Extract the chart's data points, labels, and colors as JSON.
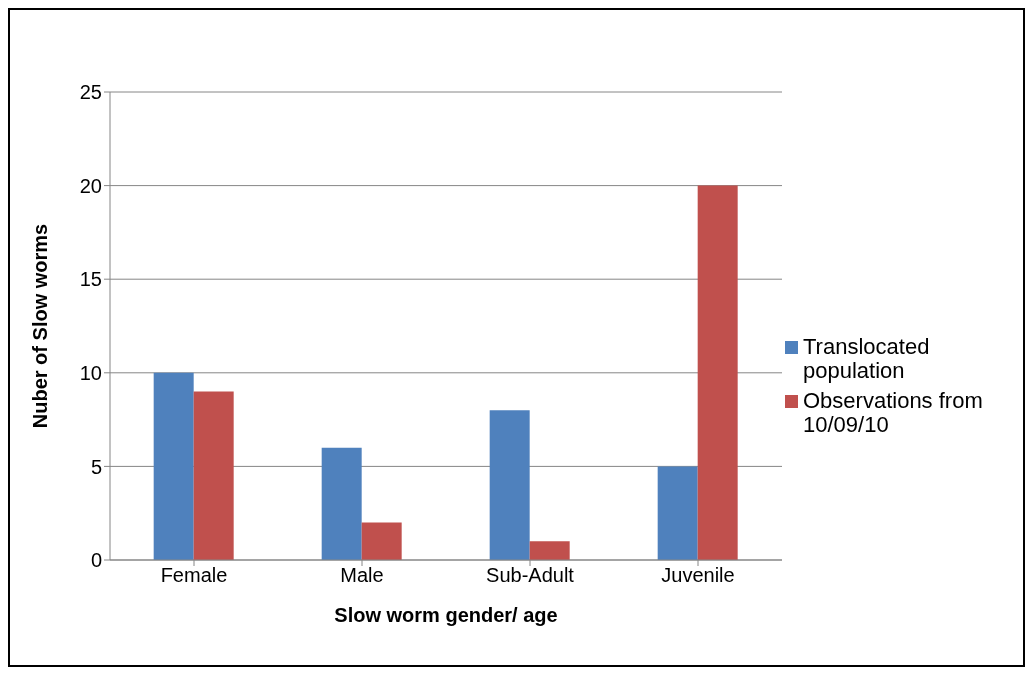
{
  "chart_data": {
    "type": "bar",
    "xlabel": "Slow worm gender/ age",
    "ylabel": "Nuber of Slow worms",
    "categories": [
      "Female",
      "Male",
      "Sub-Adult",
      "Juvenile"
    ],
    "series": [
      {
        "name": "Translocated population",
        "color": "#4f81bd",
        "values": [
          10,
          6,
          8,
          5
        ]
      },
      {
        "name": "Observations from 10/09/10",
        "color": "#c0504d",
        "values": [
          9,
          2,
          1,
          20
        ]
      }
    ],
    "ylim": [
      0,
      25
    ],
    "yticks": [
      0,
      5,
      10,
      15,
      20,
      25
    ],
    "grid": "y",
    "legend": "right"
  }
}
